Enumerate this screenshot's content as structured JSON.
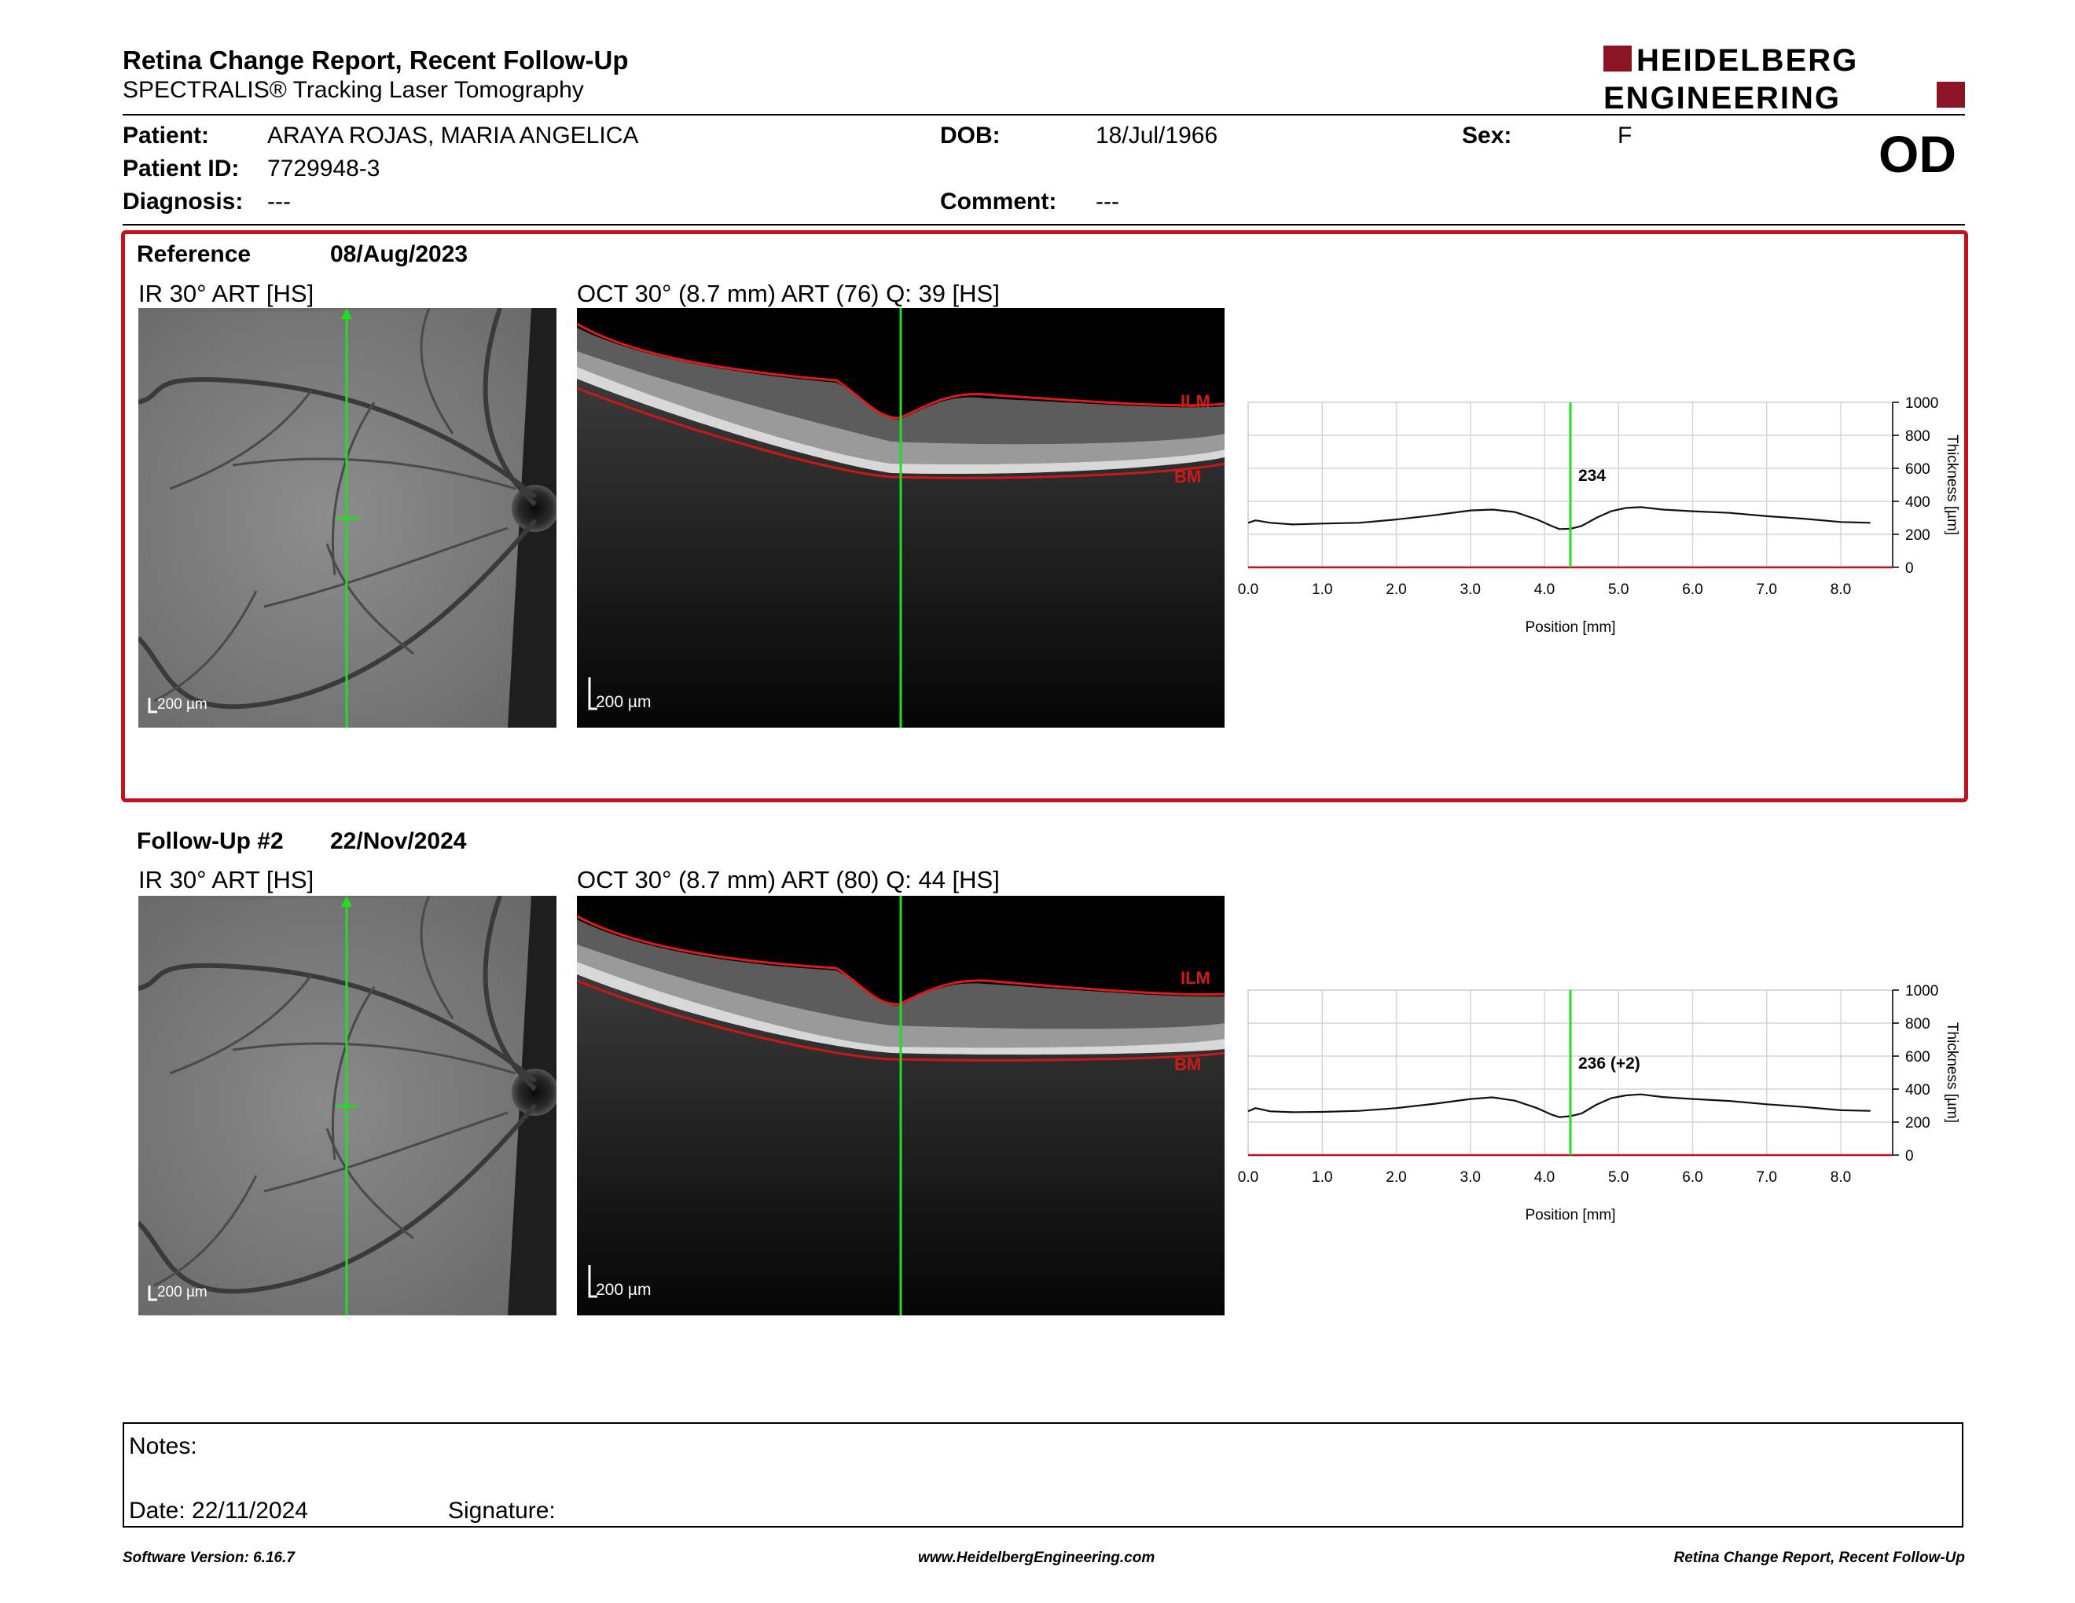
{
  "header": {
    "title": "Retina Change Report, Recent Follow-Up",
    "subtitle": "SPECTRALIS® Tracking Laser Tomography",
    "logo_line1": "HEIDELBERG",
    "logo_line2": "ENGINEERING",
    "eye": "OD"
  },
  "patient": {
    "name_label": "Patient:",
    "name": "ARAYA ROJAS, MARIA ANGELICA",
    "id_label": "Patient ID:",
    "id": "7729948-3",
    "diagnosis_label": "Diagnosis:",
    "diagnosis": "---",
    "dob_label": "DOB:",
    "dob": "18/Jul/1966",
    "comment_label": "Comment:",
    "comment": "---",
    "sex_label": "Sex:",
    "sex": "F"
  },
  "reference": {
    "label": "Reference",
    "date": "08/Aug/2023",
    "ir_title": "IR 30° ART [HS]",
    "oct_title": "OCT 30° (8.7 mm) ART (76) Q: 39 [HS]",
    "scale": "200 µm",
    "ilm": "ILM",
    "bm": "BM"
  },
  "followup": {
    "label": "Follow-Up #2",
    "date": "22/Nov/2024",
    "ir_title": "IR 30° ART [HS]",
    "oct_title": "OCT 30° (8.7 mm) ART (80) Q: 44 [HS]",
    "scale": "200 µm",
    "ilm": "ILM",
    "bm": "BM"
  },
  "chart_data": [
    {
      "type": "line",
      "xlabel": "Position [mm]",
      "ylabel": "Thickness [µm]",
      "xlim": [
        0,
        8.7
      ],
      "ylim": [
        0,
        1000
      ],
      "xticks": [
        "0.0",
        "1.0",
        "2.0",
        "3.0",
        "4.0",
        "5.0",
        "6.0",
        "7.0",
        "8.0"
      ],
      "yticks": [
        "0",
        "200",
        "400",
        "600",
        "800",
        "1000"
      ],
      "cursor_x": 4.35,
      "cursor_label": "234",
      "x": [
        0.0,
        0.1,
        0.3,
        0.6,
        1.0,
        1.5,
        2.0,
        2.5,
        3.0,
        3.3,
        3.6,
        3.9,
        4.1,
        4.2,
        4.35,
        4.5,
        4.7,
        4.9,
        5.1,
        5.3,
        5.6,
        6.0,
        6.5,
        7.0,
        7.5,
        8.0,
        8.4
      ],
      "y": [
        270,
        285,
        270,
        260,
        265,
        270,
        290,
        315,
        345,
        350,
        335,
        290,
        250,
        232,
        234,
        250,
        300,
        340,
        360,
        365,
        350,
        340,
        330,
        310,
        295,
        275,
        270
      ]
    },
    {
      "type": "line",
      "xlabel": "Position [mm]",
      "ylabel": "Thickness [µm]",
      "xlim": [
        0,
        8.7
      ],
      "ylim": [
        0,
        1000
      ],
      "xticks": [
        "0.0",
        "1.0",
        "2.0",
        "3.0",
        "4.0",
        "5.0",
        "6.0",
        "7.0",
        "8.0"
      ],
      "yticks": [
        "0",
        "200",
        "400",
        "600",
        "800",
        "1000"
      ],
      "cursor_x": 4.35,
      "cursor_label": "236 (+2)",
      "x": [
        0.0,
        0.1,
        0.3,
        0.6,
        1.0,
        1.5,
        2.0,
        2.5,
        3.0,
        3.3,
        3.6,
        3.9,
        4.1,
        4.2,
        4.35,
        4.5,
        4.7,
        4.9,
        5.1,
        5.3,
        5.6,
        6.0,
        6.5,
        7.0,
        7.5,
        8.0,
        8.4
      ],
      "y": [
        265,
        285,
        265,
        260,
        262,
        268,
        285,
        310,
        340,
        350,
        330,
        285,
        245,
        230,
        236,
        252,
        305,
        345,
        362,
        368,
        352,
        340,
        328,
        308,
        292,
        272,
        268
      ]
    }
  ],
  "notes": {
    "label": "Notes:",
    "date_label": "Date: 22/11/2024",
    "signature_label": "Signature:"
  },
  "footer": {
    "software": "Software Version: 6.16.7",
    "url": "www.HeidelbergEngineering.com",
    "report": "Retina Change Report, Recent Follow-Up"
  },
  "colors": {
    "accent": "#c1121f",
    "cursor": "#22dd22",
    "ilm": "#d01a1a"
  }
}
